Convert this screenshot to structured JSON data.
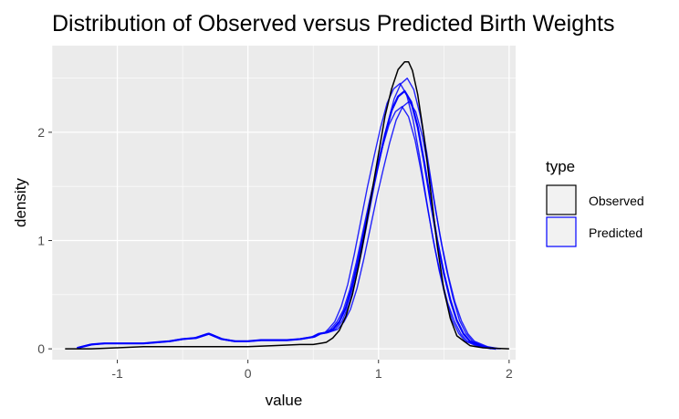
{
  "chart_data": {
    "type": "line",
    "title": "Distribution of Observed versus Predicted Birth Weights",
    "xlabel": "value",
    "ylabel": "density",
    "xlim": [
      -1.5,
      2.05
    ],
    "ylim": [
      -0.1,
      2.8
    ],
    "x_ticks": [
      -1,
      0,
      1,
      2
    ],
    "x_tick_labels": [
      "-1",
      "0",
      "1",
      "2"
    ],
    "y_ticks": [
      0,
      1,
      2
    ],
    "y_tick_labels": [
      "0",
      "1",
      "2"
    ],
    "grid": true,
    "legend": {
      "title": "type",
      "position": "right",
      "entries": [
        {
          "label": "Observed",
          "color": "#000000"
        },
        {
          "label": "Predicted",
          "color": "#0000ff"
        }
      ]
    },
    "series": [
      {
        "name": "Observed",
        "color": "#000000",
        "x": [
          -1.4,
          -1.2,
          -1.0,
          -0.8,
          -0.6,
          -0.4,
          -0.2,
          0.0,
          0.2,
          0.4,
          0.5,
          0.55,
          0.6,
          0.65,
          0.7,
          0.75,
          0.8,
          0.85,
          0.9,
          0.95,
          1.0,
          1.05,
          1.1,
          1.15,
          1.2,
          1.23,
          1.26,
          1.3,
          1.35,
          1.4,
          1.45,
          1.5,
          1.55,
          1.6,
          1.7,
          1.8,
          2.0
        ],
        "y": [
          0.0,
          0.0,
          0.01,
          0.02,
          0.02,
          0.02,
          0.02,
          0.02,
          0.03,
          0.04,
          0.04,
          0.05,
          0.06,
          0.1,
          0.17,
          0.3,
          0.5,
          0.78,
          1.1,
          1.45,
          1.8,
          2.15,
          2.4,
          2.58,
          2.65,
          2.65,
          2.57,
          2.35,
          1.95,
          1.45,
          0.95,
          0.55,
          0.28,
          0.12,
          0.03,
          0.01,
          0.0
        ]
      },
      {
        "name": "Predicted",
        "color": "#0000ff",
        "x": [
          -1.3,
          -1.2,
          -1.1,
          -1.0,
          -0.9,
          -0.8,
          -0.7,
          -0.6,
          -0.5,
          -0.4,
          -0.3,
          -0.2,
          -0.1,
          0.0,
          0.1,
          0.2,
          0.3,
          0.4,
          0.5,
          0.55,
          0.6,
          0.65,
          0.7,
          0.75,
          0.8,
          0.85,
          0.9,
          0.95,
          1.0,
          1.05,
          1.1,
          1.15,
          1.2,
          1.25,
          1.3,
          1.35,
          1.4,
          1.45,
          1.5,
          1.55,
          1.6,
          1.65,
          1.7,
          1.8,
          1.9
        ],
        "y": [
          0.01,
          0.04,
          0.05,
          0.05,
          0.05,
          0.05,
          0.06,
          0.07,
          0.09,
          0.1,
          0.14,
          0.09,
          0.07,
          0.07,
          0.08,
          0.08,
          0.08,
          0.09,
          0.11,
          0.14,
          0.15,
          0.18,
          0.25,
          0.38,
          0.58,
          0.85,
          1.15,
          1.45,
          1.72,
          1.98,
          2.2,
          2.33,
          2.38,
          2.28,
          2.05,
          1.72,
          1.35,
          1.0,
          0.7,
          0.45,
          0.26,
          0.14,
          0.07,
          0.02,
          0.0
        ]
      }
    ]
  }
}
